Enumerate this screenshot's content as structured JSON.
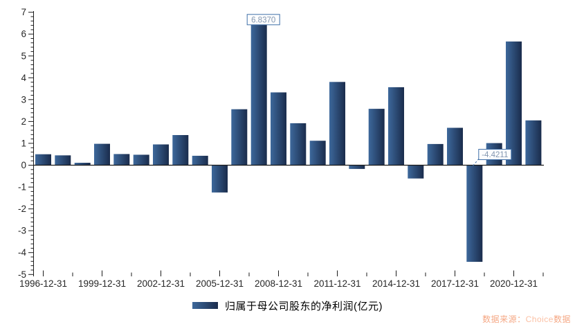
{
  "chart_data": {
    "type": "bar",
    "title": "",
    "legend": "归属于母公司股东的净利润(亿元)",
    "categories": [
      "1996-12-31",
      "1997-12-31",
      "1998-12-31",
      "1999-12-31",
      "2000-12-31",
      "2001-12-31",
      "2002-12-31",
      "2003-12-31",
      "2004-12-31",
      "2005-12-31",
      "2006-12-31",
      "2007-12-31",
      "2008-12-31",
      "2009-12-31",
      "2010-12-31",
      "2011-12-31",
      "2012-12-31",
      "2013-12-31",
      "2014-12-31",
      "2015-12-31",
      "2016-12-31",
      "2017-12-31",
      "2018-12-31",
      "2019-12-31",
      "2020-12-31",
      "2021-12-31"
    ],
    "values": [
      0.5,
      0.45,
      0.11,
      0.98,
      0.51,
      0.48,
      0.95,
      1.38,
      0.43,
      -1.25,
      2.56,
      6.837,
      3.33,
      1.92,
      1.12,
      3.81,
      -0.17,
      2.58,
      3.57,
      -0.61,
      0.97,
      1.71,
      -4.4211,
      1.01,
      5.66,
      2.05
    ],
    "x_tick_labels": [
      "1996-12-31",
      "1999-12-31",
      "2002-12-31",
      "2005-12-31",
      "2008-12-31",
      "2011-12-31",
      "2014-12-31",
      "2017-12-31",
      "2020-12-31"
    ],
    "y_ticks": [
      7,
      6,
      5,
      4,
      3,
      2,
      1,
      0,
      -1,
      -2,
      -3,
      -4,
      -5
    ],
    "ylim": [
      -5,
      7
    ],
    "annotations": [
      {
        "category": "2007-12-31",
        "index": 11,
        "label": "6.8370"
      },
      {
        "category": "2018-12-31",
        "index": 22,
        "label": "-4.4211"
      }
    ],
    "bar_gradient": [
      "#3D689B",
      "#1A2C4C"
    ],
    "annotation_border_color": "#3F6FA8",
    "annotation_text_color": "#8497B0",
    "annotation_fill": "#FCFDFE",
    "axis_color": "#1A1A1A",
    "label_color": "#262626",
    "grid": false,
    "legend_position": "bottom"
  },
  "source_note": {
    "prefix": "数据来源：",
    "brand": "Choice",
    "suffix": "数据",
    "color": "#F5A885",
    "brand_color": "#FBC0A4"
  }
}
